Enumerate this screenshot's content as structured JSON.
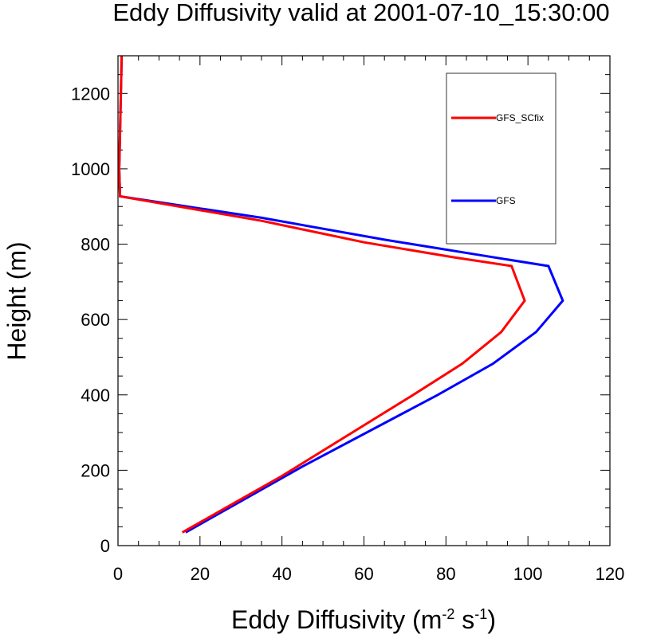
{
  "chart_data": {
    "type": "line",
    "title": "Eddy Diffusivity valid at 2001-07-10_15:30:00",
    "xlabel": {
      "base": "Eddy Diffusivity (m",
      "sup1": "-2",
      "mid": " s",
      "sup2": "-1",
      "end": ")"
    },
    "ylabel": "Height (m)",
    "xlim": [
      0,
      120
    ],
    "ylim": [
      0,
      1300
    ],
    "xticks": [
      0,
      20,
      40,
      60,
      80,
      100,
      120
    ],
    "yticks": [
      0,
      200,
      400,
      600,
      800,
      1000,
      1200
    ],
    "xtick_labels": [
      "0",
      "20",
      "40",
      "60",
      "80",
      "100",
      "120"
    ],
    "ytick_labels": [
      "0",
      "200",
      "400",
      "600",
      "800",
      "1000",
      "1200"
    ],
    "grid": false,
    "legend_position": "top-right",
    "series": [
      {
        "name": "GFS_SCfix",
        "color": "#ff0000",
        "x": [
          15.7,
          40,
          72,
          84,
          93.5,
          99.2,
          96,
          82,
          60,
          35,
          0.5,
          0.3,
          0.4,
          0.6,
          0.8,
          0.9
        ],
        "y": [
          35,
          185,
          400,
          483,
          567,
          650,
          742,
          765,
          805,
          862,
          927,
          1000,
          1050,
          1150,
          1250,
          1300
        ]
      },
      {
        "name": "GFS",
        "color": "#0000ff",
        "x": [
          16.5,
          45,
          78,
          91.5,
          102,
          108.5,
          105,
          90,
          65,
          35,
          0.5,
          0.3,
          0.4,
          0.6,
          0.8,
          0.9
        ],
        "y": [
          35,
          210,
          400,
          483,
          567,
          650,
          742,
          768,
          812,
          870,
          927,
          1000,
          1050,
          1150,
          1250,
          1300
        ]
      }
    ]
  }
}
